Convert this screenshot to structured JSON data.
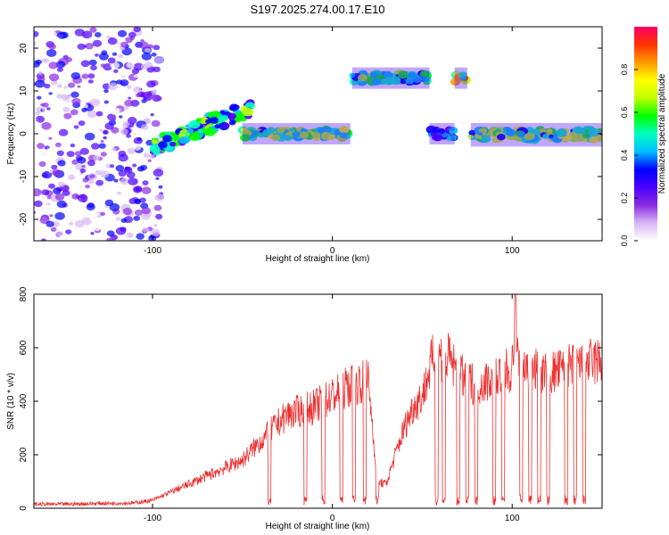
{
  "title": "S197.2025.274.00.17.E10",
  "chart_data": [
    {
      "type": "heatmap",
      "title": "S197.2025.274.00.17.E10",
      "xlabel": "Height of straight line (km)",
      "ylabel": "Frequency (Hz)",
      "xlim": [
        -166,
        150
      ],
      "ylim": [
        -25,
        25
      ],
      "xticks": [
        -100,
        0,
        100
      ],
      "yticks": [
        -20,
        -10,
        0,
        10,
        20
      ],
      "colorbar": {
        "label": "Normalized spectral amplitude",
        "range": [
          0,
          1
        ],
        "ticks": [
          "0.0",
          "0.2",
          "0.4",
          "0.6",
          "0.8"
        ],
        "colors": [
          "#ffffff",
          "#d7b8f5",
          "#8a2be2",
          "#4b00ff",
          "#0000ff",
          "#00c0ff",
          "#00ffc0",
          "#00ff00",
          "#c0ff00",
          "#ffff00",
          "#ff9900",
          "#ff3300",
          "#ff0066"
        ]
      },
      "features": [
        {
          "name": "scatter noise",
          "x": [
            -166,
            -95
          ],
          "freq": [
            -25,
            25
          ],
          "amplitude": 0.15
        },
        {
          "name": "rising trace",
          "x": [
            -100,
            -45
          ],
          "freq": [
            -3,
            6
          ],
          "amplitude": 0.45
        },
        {
          "name": "main trace",
          "x": [
            -50,
            10
          ],
          "freq": [
            -1,
            1
          ],
          "amplitude": 0.6
        },
        {
          "name": "upper band",
          "x": [
            11,
            54
          ],
          "freq": [
            12,
            14
          ],
          "amplitude": 0.5
        },
        {
          "name": "upper band short",
          "x": [
            68,
            75
          ],
          "freq": [
            12,
            14
          ],
          "amplitude": 0.7
        },
        {
          "name": "segment",
          "x": [
            54,
            68
          ],
          "freq": [
            -1,
            1
          ],
          "amplitude": 0.4
        },
        {
          "name": "tail trace",
          "x": [
            77,
            150
          ],
          "freq": [
            -1.5,
            1
          ],
          "amplitude": 0.6
        }
      ]
    },
    {
      "type": "line",
      "xlabel": "Height of straight line (km)",
      "ylabel": "SNR (10 * v/v)",
      "xlim": [
        -166,
        150
      ],
      "ylim": [
        0,
        800
      ],
      "xticks": [
        -100,
        0,
        100
      ],
      "yticks": [
        0,
        200,
        400,
        600,
        800
      ],
      "color": "#ee3030",
      "series": [
        {
          "name": "SNR",
          "x": [
            -166,
            -150,
            -130,
            -110,
            -100,
            -90,
            -80,
            -70,
            -60,
            -50,
            -40,
            -30,
            -25,
            -20,
            -10,
            0,
            10,
            20,
            25,
            30,
            35,
            40,
            45,
            50,
            55,
            58,
            60,
            65,
            70,
            75,
            80,
            90,
            100,
            102,
            103,
            104,
            106,
            110,
            120,
            130,
            140,
            150
          ],
          "values": [
            15,
            15,
            18,
            20,
            30,
            60,
            90,
            120,
            150,
            180,
            250,
            320,
            350,
            360,
            380,
            420,
            460,
            480,
            100,
            90,
            200,
            300,
            380,
            420,
            540,
            590,
            570,
            560,
            500,
            480,
            460,
            490,
            520,
            820,
            560,
            510,
            530,
            520,
            500,
            520,
            540,
            550
          ]
        }
      ],
      "dropouts_x": [
        -35,
        -15,
        -5,
        5,
        12,
        18,
        25,
        58,
        62,
        70,
        75,
        80,
        90,
        95,
        105,
        110,
        115,
        120,
        130,
        135,
        140
      ]
    }
  ]
}
